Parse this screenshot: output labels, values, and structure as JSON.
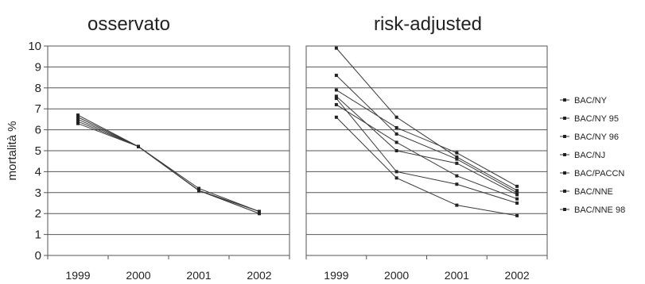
{
  "colors": {
    "grid": "#555555",
    "line": "#3a3a3a",
    "frame": "#555555",
    "marker": "#222222"
  },
  "chart_data": [
    {
      "type": "line",
      "title": "osservato",
      "ylabel": "mortalità %",
      "xlabel": "",
      "categories": [
        "1999",
        "2000",
        "2001",
        "2002"
      ],
      "ylim": [
        0,
        10
      ],
      "yticks": [
        "0",
        "1",
        "2",
        "3",
        "4",
        "5",
        "6",
        "7",
        "8",
        "9",
        "10"
      ],
      "grid": true,
      "series": [
        {
          "values": [
            6.7,
            5.2,
            3.1,
            2.1
          ]
        },
        {
          "values": [
            6.6,
            5.2,
            3.1,
            2.0
          ]
        },
        {
          "values": [
            6.5,
            5.2,
            3.2,
            2.1
          ]
        },
        {
          "values": [
            6.4,
            5.2,
            3.1,
            2.0
          ]
        },
        {
          "values": [
            6.3,
            5.2,
            3.1,
            2.1
          ]
        }
      ]
    },
    {
      "type": "line",
      "title": "risk-adjusted",
      "xlabel": "",
      "ylabel": "",
      "categories": [
        "1999",
        "2000",
        "2001",
        "2002"
      ],
      "ylim": [
        0,
        10
      ],
      "grid": true,
      "legend_position": "right",
      "series": [
        {
          "name": "BAC/NY",
          "values": [
            9.9,
            6.6,
            4.7,
            3.1
          ]
        },
        {
          "name": "BAC/NY 95",
          "values": [
            8.6,
            5.8,
            4.6,
            3.0
          ]
        },
        {
          "name": "BAC/NY 96",
          "values": [
            7.9,
            6.1,
            4.9,
            3.3
          ]
        },
        {
          "name": "BAC/NJ",
          "values": [
            7.6,
            5.0,
            4.4,
            2.9
          ]
        },
        {
          "name": "BAC/PACCN",
          "values": [
            7.5,
            4.0,
            3.4,
            2.5
          ]
        },
        {
          "name": "BAC/NNE",
          "values": [
            6.6,
            3.7,
            2.4,
            1.9
          ]
        },
        {
          "name": "BAC/NNE 98",
          "values": [
            7.2,
            5.4,
            3.8,
            2.7
          ]
        }
      ]
    }
  ]
}
